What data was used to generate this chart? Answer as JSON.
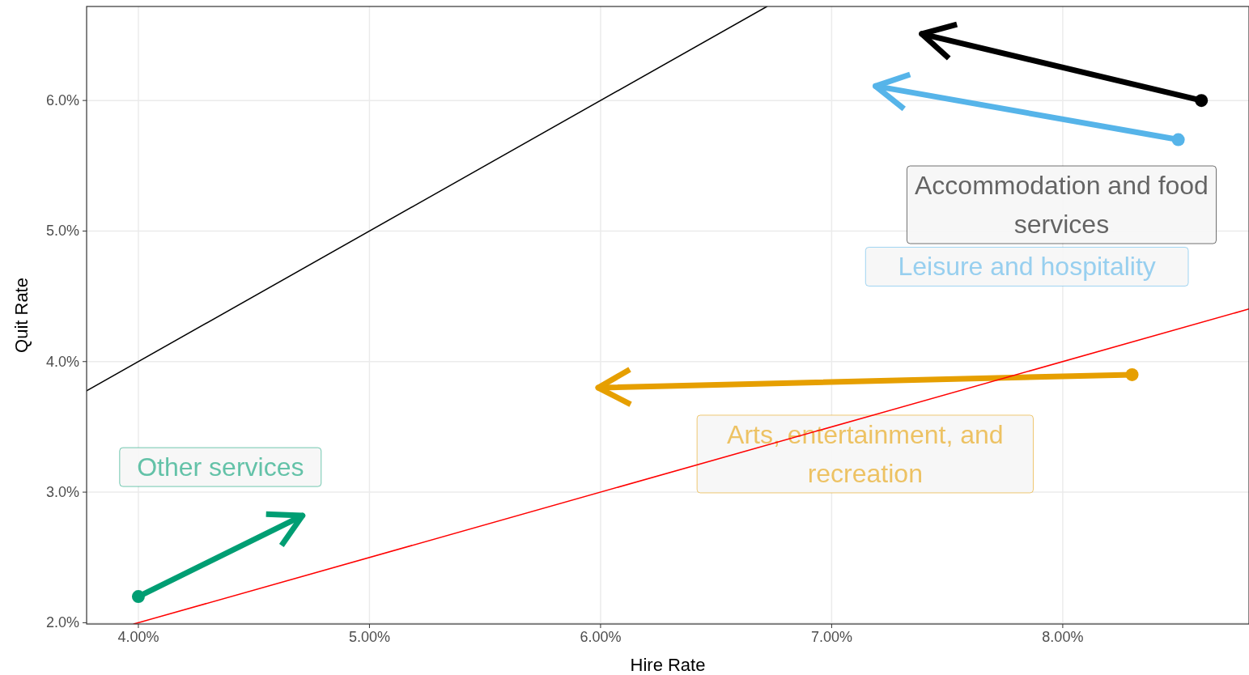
{
  "chart_data": {
    "type": "line",
    "xlabel": "Hire Rate",
    "ylabel": "Quit Rate",
    "xlim": [
      3.776,
      8.806
    ],
    "ylim": [
      1.99,
      6.72
    ],
    "xticks": [
      {
        "value": 4,
        "label": "4.00%"
      },
      {
        "value": 5,
        "label": "5.00%"
      },
      {
        "value": 6,
        "label": "6.00%"
      },
      {
        "value": 7,
        "label": "7.00%"
      },
      {
        "value": 8,
        "label": "8.00%"
      }
    ],
    "yticks": [
      {
        "value": 2,
        "label": "2.0%"
      },
      {
        "value": 3,
        "label": "3.0%"
      },
      {
        "value": 4,
        "label": "4.0%"
      },
      {
        "value": 5,
        "label": "5.0%"
      },
      {
        "value": 6,
        "label": "6.0%"
      }
    ],
    "grid": true,
    "marker": "circle",
    "line_style": "solid",
    "series": [
      {
        "name": "Accommodation and food services",
        "color": "#000000",
        "x": [
          8.6,
          7.39
        ],
        "values": [
          6.0,
          6.51
        ]
      },
      {
        "name": "Leisure and hospitality",
        "color": "#56b4e9",
        "x": [
          8.5,
          7.19
        ],
        "values": [
          5.7,
          6.11
        ]
      },
      {
        "name": "Arts, entertainment, and recreation",
        "color": "#e69f00",
        "x": [
          8.3,
          5.99
        ],
        "values": [
          3.9,
          3.8
        ]
      },
      {
        "name": "Other services",
        "color": "#009e73",
        "x": [
          4.0,
          4.71
        ],
        "values": [
          2.2,
          2.82
        ]
      },
      {
        "color": "#000000",
        "x": [
          3.776,
          6.72
        ],
        "values": [
          3.776,
          6.72
        ],
        "marker": "none"
      },
      {
        "color": "#ff0000",
        "x": [
          3.98,
          8.806
        ],
        "values": [
          1.99,
          4.403
        ],
        "marker": "none"
      }
    ]
  }
}
